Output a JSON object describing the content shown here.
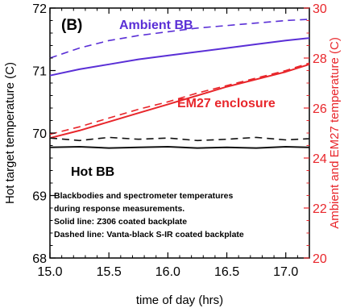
{
  "chart_data": {
    "type": "line",
    "panel_label": "(B)",
    "xlabel": "time of day (hrs)",
    "ylabel": "Hot target temperature (C)",
    "ylabel_right": "Ambient and EM27 temperature (C)",
    "xlim": [
      15.0,
      17.2
    ],
    "ylim": [
      68,
      72
    ],
    "ylim_right": [
      20,
      30
    ],
    "xticks": [
      "15.0",
      "15.5",
      "16.0",
      "16.5",
      "17.0"
    ],
    "yticks_left": [
      "68",
      "69",
      "70",
      "71",
      "72"
    ],
    "yticks_right": [
      "20",
      "22",
      "24",
      "26",
      "28",
      "30"
    ],
    "grid": false,
    "colors": {
      "ambient": "#5a2fd6",
      "em27": "#e8262b",
      "hot": "#111111",
      "right_axis": "#e8262b"
    },
    "annotations": [
      {
        "text": "Ambient BB",
        "color": "#5a2fd6"
      },
      {
        "text": "EM27 enclosure",
        "color": "#e8262b"
      },
      {
        "text": "Hot BB",
        "color": "#000000"
      }
    ],
    "note_lines": [
      "Blackbodies and spectrometer temperatures",
      "during response measurements.",
      "Solid line:      Z306 coated backplate",
      "Dashed line:  Vanta-black S-IR coated backplate"
    ],
    "series": [
      {
        "axis": "right",
        "style": "dashed",
        "color": "#5a2fd6",
        "x": [
          15.0,
          15.25,
          15.5,
          15.75,
          16.0,
          16.25,
          16.5,
          16.75,
          17.0,
          17.2
        ],
        "y": [
          28.0,
          28.4,
          28.7,
          28.9,
          29.05,
          29.2,
          29.3,
          29.4,
          29.5,
          29.55
        ]
      },
      {
        "axis": "right",
        "style": "solid",
        "color": "#5a2fd6",
        "x": [
          15.0,
          15.25,
          15.5,
          15.75,
          16.0,
          16.25,
          16.5,
          16.75,
          17.0,
          17.2
        ],
        "y": [
          27.3,
          27.55,
          27.75,
          27.95,
          28.1,
          28.25,
          28.4,
          28.55,
          28.7,
          28.8
        ]
      },
      {
        "axis": "right",
        "style": "solid",
        "color": "#e8262b",
        "x": [
          15.0,
          15.25,
          15.5,
          15.75,
          16.0,
          16.25,
          16.5,
          16.75,
          17.0,
          17.2
        ],
        "y": [
          24.8,
          25.1,
          25.45,
          25.8,
          26.15,
          26.5,
          26.85,
          27.15,
          27.45,
          27.75
        ]
      },
      {
        "axis": "right",
        "style": "dashed",
        "color": "#e8262b",
        "x": [
          15.0,
          15.25,
          15.5,
          15.75,
          16.0,
          16.25,
          16.5,
          16.75,
          17.0,
          17.2
        ],
        "y": [
          24.95,
          25.25,
          25.6,
          25.95,
          26.25,
          26.6,
          26.9,
          27.2,
          27.5,
          27.8
        ]
      },
      {
        "axis": "left",
        "style": "dashed",
        "color": "#111111",
        "x": [
          15.0,
          15.25,
          15.5,
          15.75,
          16.0,
          16.25,
          16.5,
          16.75,
          17.0,
          17.2
        ],
        "y": [
          69.92,
          69.88,
          69.93,
          69.9,
          69.92,
          69.88,
          69.9,
          69.93,
          69.89,
          69.91
        ]
      },
      {
        "axis": "left",
        "style": "solid",
        "color": "#111111",
        "x": [
          15.0,
          15.25,
          15.5,
          15.75,
          16.0,
          16.25,
          16.5,
          16.75,
          17.0,
          17.2
        ],
        "y": [
          69.77,
          69.78,
          69.76,
          69.77,
          69.78,
          69.76,
          69.77,
          69.76,
          69.78,
          69.77
        ]
      }
    ]
  }
}
